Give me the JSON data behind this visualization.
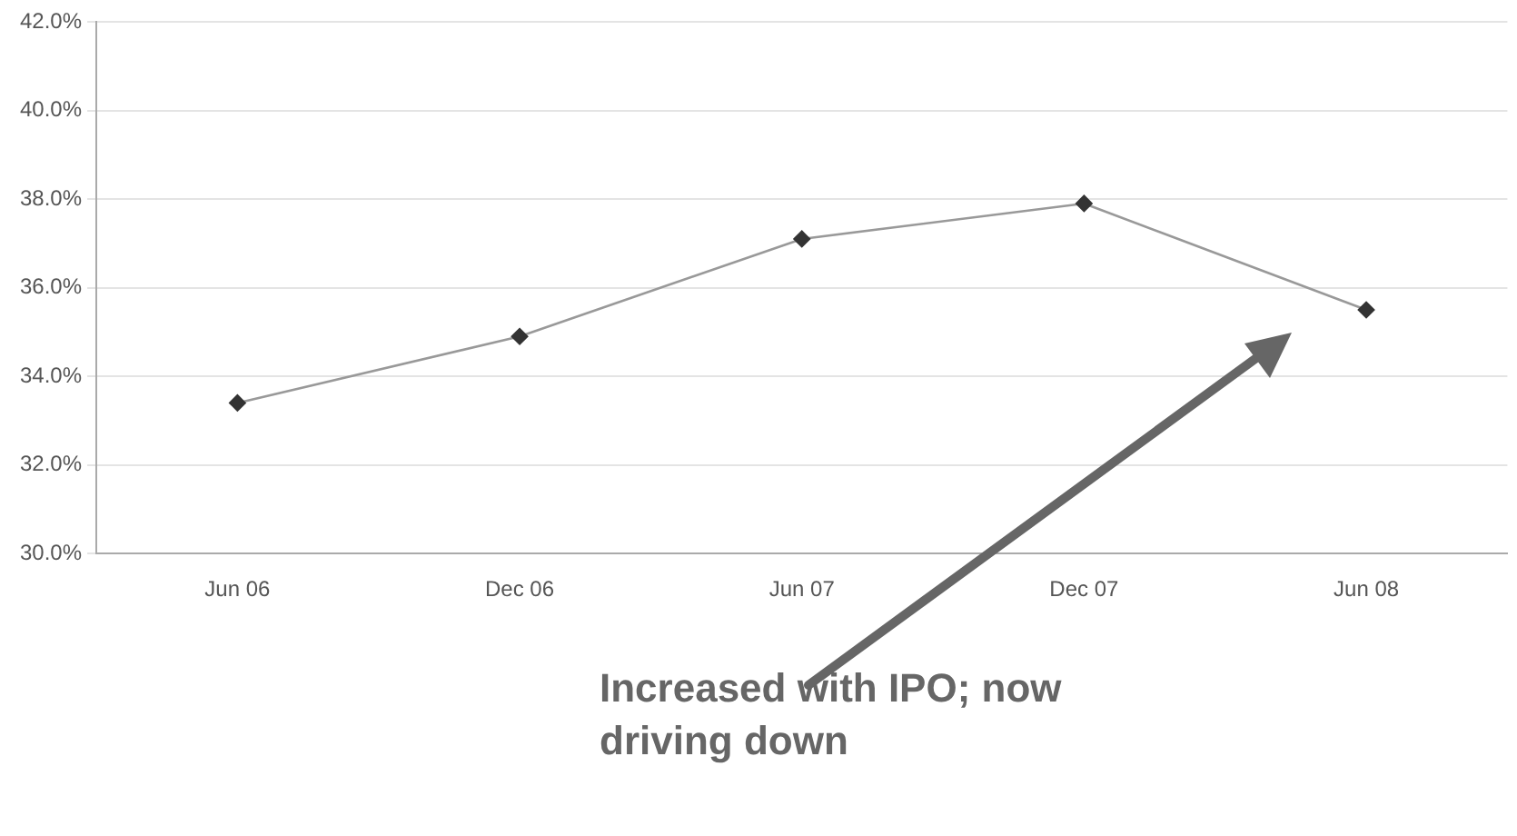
{
  "chart_data": {
    "type": "line",
    "categories": [
      "Jun 06",
      "Dec 06",
      "Jun 07",
      "Dec 07",
      "Jun 08"
    ],
    "series": [
      {
        "color": "#999999",
        "values": [
          33.4,
          34.9,
          37.1,
          37.9,
          35.5
        ]
      }
    ],
    "ylim": [
      30,
      42
    ],
    "yticks": [
      {
        "value": 30,
        "label": "30.0%"
      },
      {
        "value": 32,
        "label": "32.0%"
      },
      {
        "value": 34,
        "label": "34.0%"
      },
      {
        "value": 36,
        "label": "36.0%"
      },
      {
        "value": 38,
        "label": "38.0%"
      },
      {
        "value": 40,
        "label": "40.0%"
      },
      {
        "value": 42,
        "label": "42.0%"
      }
    ],
    "grid": "y",
    "marker": "diamond",
    "legend": false,
    "annotations": [
      "Increased with IPO; now driving down"
    ]
  }
}
